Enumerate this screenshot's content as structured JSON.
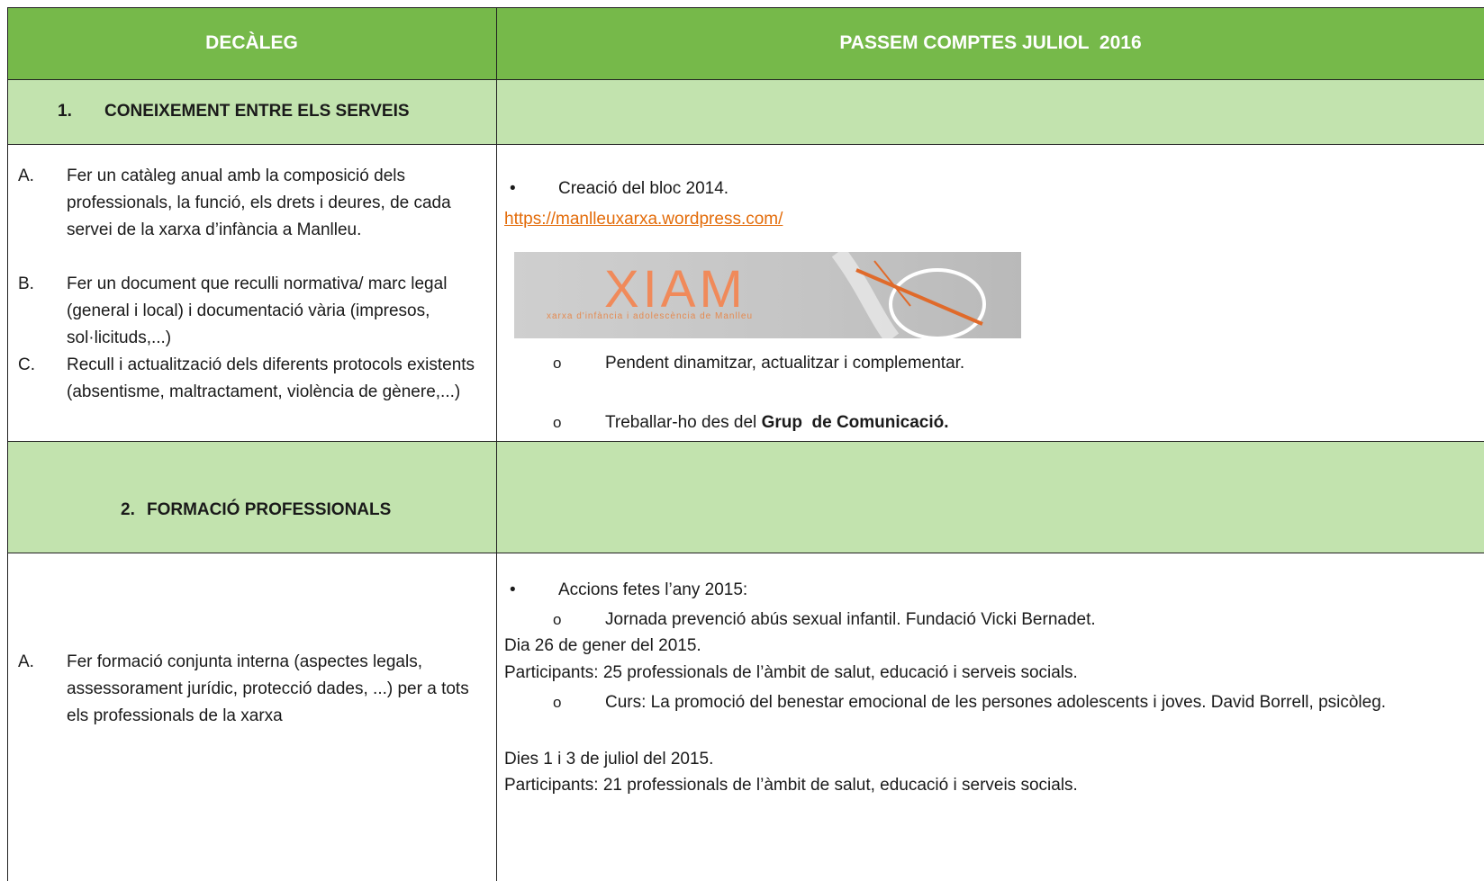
{
  "header": {
    "left": "DECÀLEG",
    "right": "PASSEM COMPTES JULIOL  2016"
  },
  "sections": [
    {
      "number": "1.",
      "title": "CONEIXEMENT ENTRE ELS SERVEIS",
      "items": [
        {
          "letter": "A.",
          "text": "Fer un catàleg anual amb la composició dels professionals, la funció, els drets i deures, de cada servei de la xarxa d’infància a Manlleu."
        },
        {
          "letter": "B.",
          "text": "Fer un document que reculli normativa/ marc legal (general i local) i documentació vària (impresos, sol·licituds,...)"
        },
        {
          "letter": "C.",
          "text": "Recull i actualització dels diferents protocols existents (absentisme, maltractament, violència de gènere,...)"
        }
      ],
      "progress": {
        "bullet": "Creació del bloc 2014.",
        "link": "https://manlleuxarxa.wordpress.com/",
        "logo": {
          "title": "XIAM",
          "caption": "xarxa d'infància i adolescència de Manlleu"
        },
        "subitems": [
          {
            "text": "Pendent dinamitzar, actualitzar i complementar."
          },
          {
            "text": "Treballar-ho des del ",
            "bold": "Grup  de Comunicació."
          }
        ]
      }
    },
    {
      "number": "2.",
      "title": "FORMACIÓ PROFESSIONALS",
      "items": [
        {
          "letter": "A.",
          "text": "Fer formació conjunta interna (aspectes legals, assessorament jurídic, protecció dades, ...) per a tots els professionals de la xarxa"
        }
      ],
      "progress": {
        "bullet": "Accions fetes l’any 2015:",
        "actions": [
          {
            "title": "Jornada prevenció abús sexual infantil. Fundació Vicki Bernadet.",
            "date": "Dia 26 de gener del 2015.",
            "participants": "Participants: 25 professionals de l’àmbit de salut, educació i serveis socials."
          },
          {
            "title": "Curs: La promoció del benestar emocional de les persones adolescents i joves. David Borrell, psicòleg.",
            "date": "Dies 1 i 3 de juliol del 2015.",
            "participants": "Participants: 21 professionals de l’àmbit de salut, educació i serveis socials."
          }
        ]
      }
    }
  ]
}
